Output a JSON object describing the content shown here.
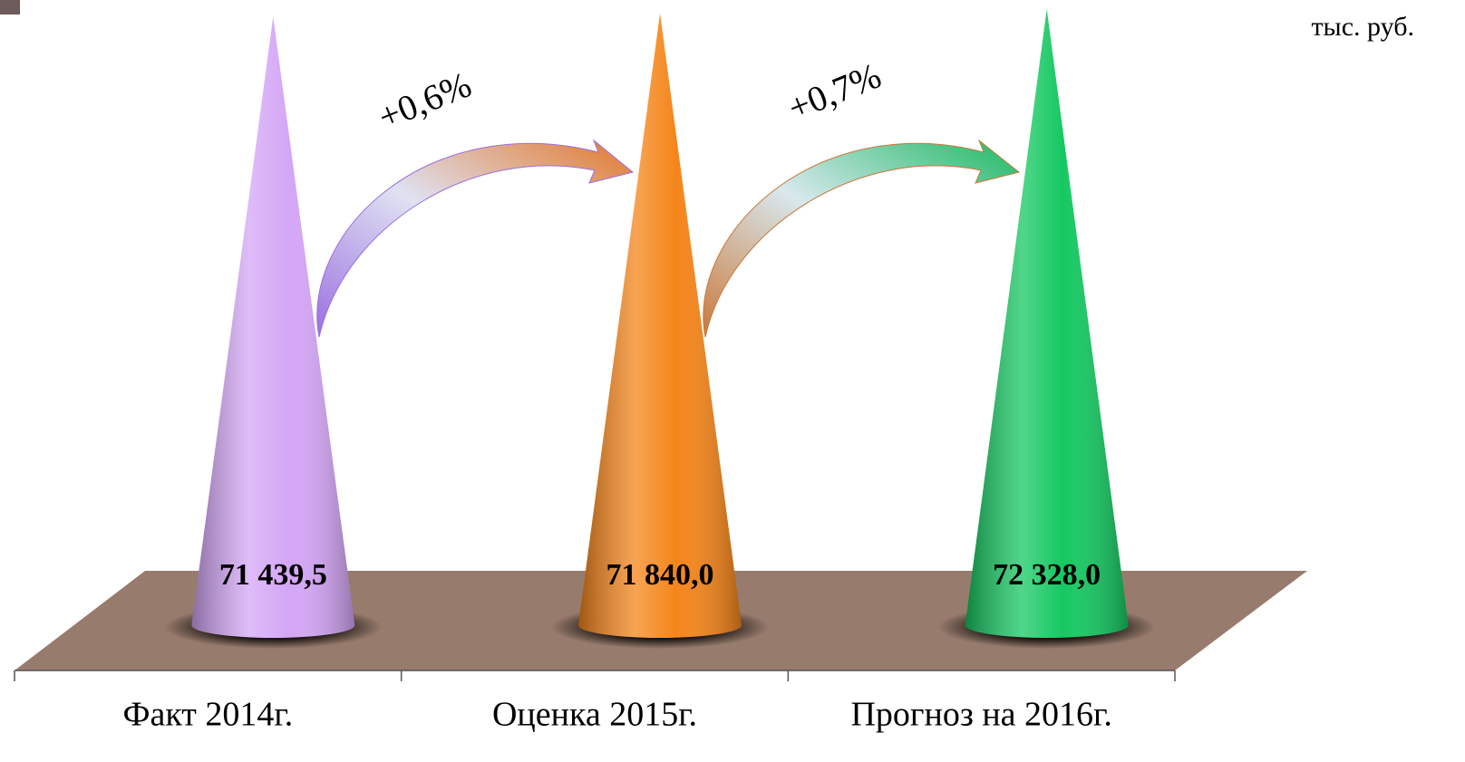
{
  "chart_data": {
    "type": "cone",
    "unit": "тыс. руб.",
    "categories": [
      "Факт 2014г.",
      "Оценка 2015г.",
      "Прогноз на 2016г."
    ],
    "values": [
      71439.5,
      71840.0,
      72328.0
    ],
    "value_labels": [
      "71 439,5",
      "71 840,0",
      "72 328,0"
    ],
    "colors": [
      "#d4a6f6",
      "#f5851a",
      "#16c862"
    ],
    "annotations": [
      "+0,6%",
      "+0,7%"
    ]
  }
}
